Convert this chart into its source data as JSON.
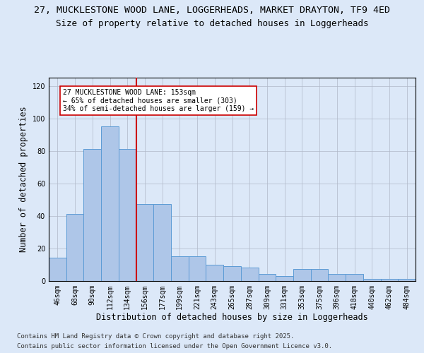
{
  "title_line1": "27, MUCKLESTONE WOOD LANE, LOGGERHEADS, MARKET DRAYTON, TF9 4ED",
  "title_line2": "Size of property relative to detached houses in Loggerheads",
  "xlabel": "Distribution of detached houses by size in Loggerheads",
  "ylabel": "Number of detached properties",
  "categories": [
    "46sqm",
    "68sqm",
    "90sqm",
    "112sqm",
    "134sqm",
    "156sqm",
    "177sqm",
    "199sqm",
    "221sqm",
    "243sqm",
    "265sqm",
    "287sqm",
    "309sqm",
    "331sqm",
    "353sqm",
    "375sqm",
    "396sqm",
    "418sqm",
    "440sqm",
    "462sqm",
    "484sqm"
  ],
  "values": [
    14,
    41,
    81,
    95,
    81,
    47,
    47,
    15,
    15,
    10,
    9,
    8,
    4,
    3,
    7,
    7,
    4,
    4,
    1,
    1,
    1
  ],
  "bar_color": "#aec6e8",
  "bar_edge_color": "#5b9bd5",
  "vline_index": 5,
  "vline_color": "#cc0000",
  "annotation_text": "27 MUCKLESTONE WOOD LANE: 153sqm\n← 65% of detached houses are smaller (303)\n34% of semi-detached houses are larger (159) →",
  "annotation_box_color": "#ffffff",
  "annotation_box_edge": "#cc0000",
  "ylim": [
    0,
    125
  ],
  "yticks": [
    0,
    20,
    40,
    60,
    80,
    100,
    120
  ],
  "footer_line1": "Contains HM Land Registry data © Crown copyright and database right 2025.",
  "footer_line2": "Contains public sector information licensed under the Open Government Licence v3.0.",
  "bg_color": "#dce8f8",
  "plot_bg_color": "#dce8f8",
  "title_fontsize": 9.5,
  "subtitle_fontsize": 9,
  "tick_fontsize": 7,
  "label_fontsize": 8.5,
  "footer_fontsize": 6.5
}
